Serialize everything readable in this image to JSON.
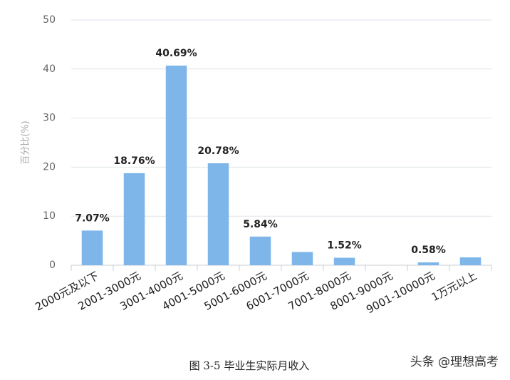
{
  "chart_data": {
    "type": "bar",
    "y_label": "百分比(%)",
    "categories": [
      "2000元及以下",
      "2001-3000元",
      "3001-4000元",
      "4001-5000元",
      "5001-6000元",
      "6001-7000元",
      "7001-8000元",
      "8001-9000元",
      "9001-10000元",
      "1万元以上"
    ],
    "values": [
      7.07,
      18.76,
      40.69,
      20.78,
      5.84,
      2.7,
      1.52,
      0,
      0.58,
      1.6
    ],
    "value_labels": [
      "7.07%",
      "18.76%",
      "40.69%",
      "20.78%",
      "5.84%",
      null,
      "1.52%",
      null,
      "0.58%",
      null
    ],
    "color": "#7eb6ea",
    "ylim": [
      0,
      50
    ],
    "yticks": [
      0,
      10,
      20,
      30,
      40,
      50
    ],
    "grid": true,
    "caption": "图 3-5  毕业生实际月收入"
  },
  "watermark": "头条 @理想高考"
}
